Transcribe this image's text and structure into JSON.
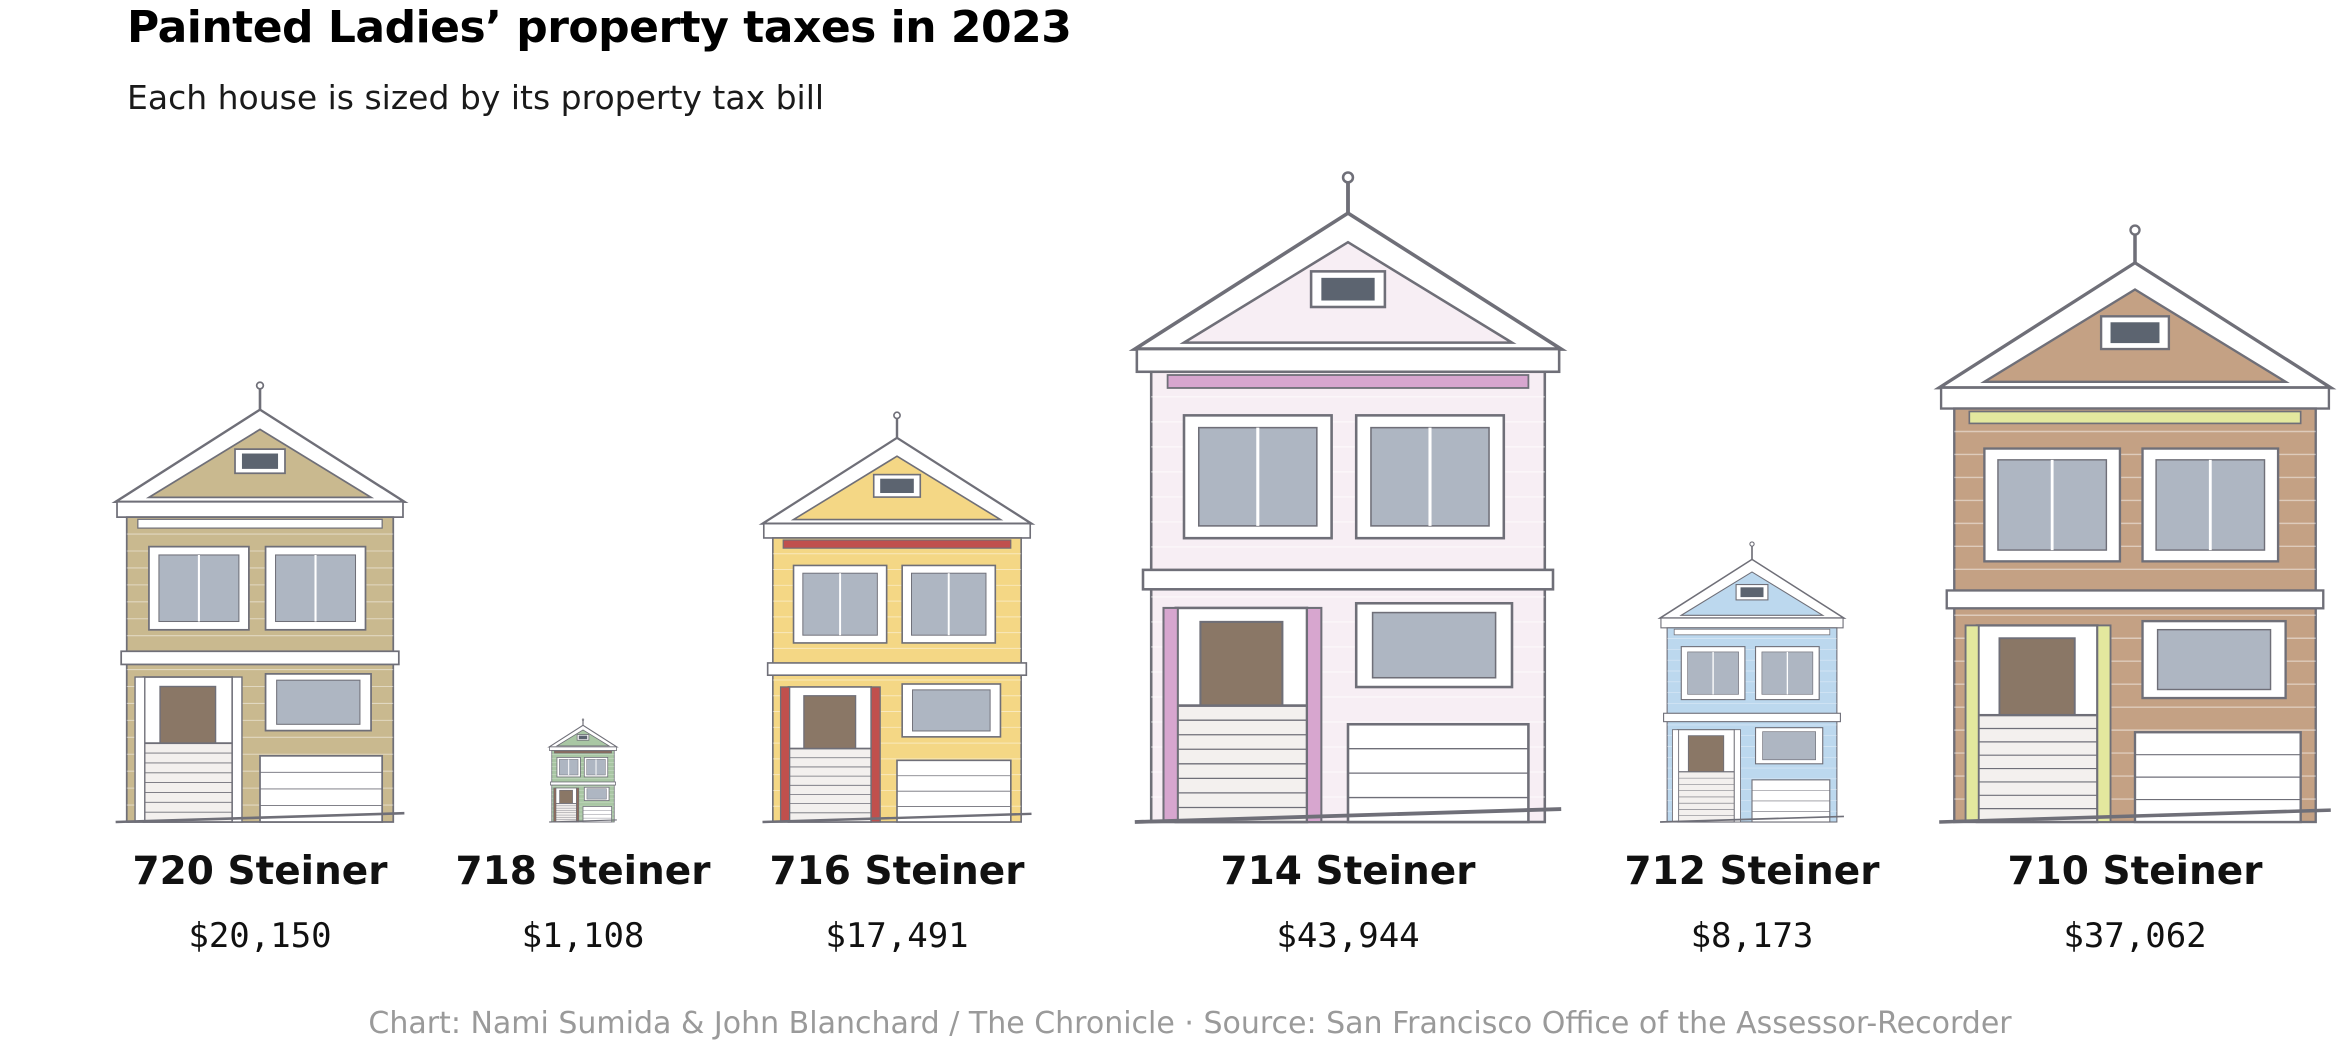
{
  "title": "Painted Ladies’ property taxes in 2023",
  "subtitle": "Each house is sized by its property tax bill",
  "credit": "Chart: Nami Sumida & John Blanchard / The Chronicle · Source: San Francisco Office of the Assessor-Recorder",
  "chart_data": {
    "type": "bar",
    "title": "Painted Ladies’ property taxes in 2023",
    "subtitle": "Each house is sized by its property tax bill",
    "categories": [
      "720 Steiner",
      "718 Steiner",
      "716 Steiner",
      "714 Steiner",
      "712 Steiner",
      "710 Steiner"
    ],
    "value_labels": [
      "$20,150",
      "$1,108",
      "$17,491",
      "$43,944",
      "$8,173",
      "$37,062"
    ],
    "values": [
      20150,
      1108,
      17491,
      43944,
      8173,
      37062
    ],
    "marks": "house illustrations scaled by value",
    "colors": {
      "720 Steiner": "#c9b98f",
      "718 Steiner": "#a9c7a4",
      "716 Steiner": "#f4d785",
      "714 Steiner": "#f7eef4",
      "712 Steiner": "#bcd8ee",
      "710 Steiner": "#c4a184"
    },
    "accent_colors": {
      "720 Steiner": "#ffffff",
      "718 Steiner": "#8e6b5b",
      "716 Steiner": "#c0504d",
      "714 Steiner": "#d7a6cf",
      "712 Steiner": "#ffffff",
      "710 Steiner": "#e3e89e"
    }
  }
}
